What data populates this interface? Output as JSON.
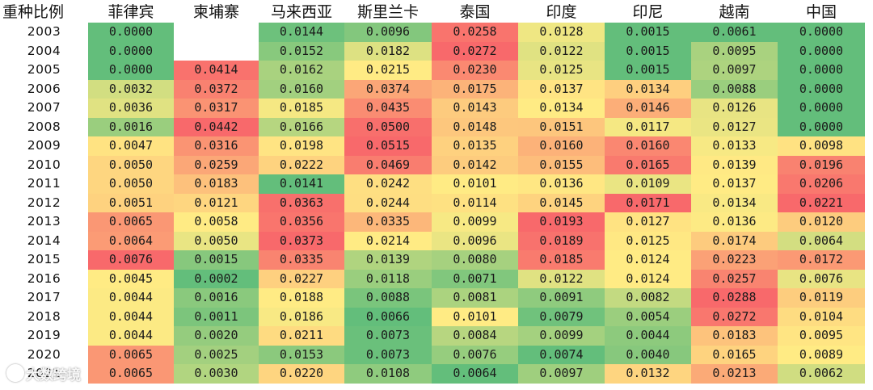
{
  "chart_data": {
    "type": "heatmap",
    "corner_label": "重种比例",
    "columns": [
      "菲律宾",
      "柬埔寨",
      "马来西亚",
      "斯里兰卡",
      "泰国",
      "印度",
      "印尼",
      "越南",
      "中国"
    ],
    "rows": [
      "2003",
      "2004",
      "2005",
      "2006",
      "2007",
      "2008",
      "2009",
      "2010",
      "2011",
      "2012",
      "2013",
      "2014",
      "2015",
      "2016",
      "2017",
      "2018",
      "2019",
      "2020",
      "2021"
    ],
    "values": [
      [
        "0.0000",
        null,
        "0.0144",
        "0.0096",
        "0.0258",
        "0.0128",
        "0.0015",
        "0.0061",
        "0.0000"
      ],
      [
        "0.0000",
        null,
        "0.0152",
        "0.0182",
        "0.0272",
        "0.0122",
        "0.0015",
        "0.0095",
        "0.0000"
      ],
      [
        "0.0000",
        "0.0414",
        "0.0162",
        "0.0215",
        "0.0230",
        "0.0125",
        "0.0015",
        "0.0097",
        "0.0000"
      ],
      [
        "0.0032",
        "0.0372",
        "0.0160",
        "0.0374",
        "0.0175",
        "0.0137",
        "0.0134",
        "0.0088",
        "0.0000"
      ],
      [
        "0.0036",
        "0.0317",
        "0.0185",
        "0.0435",
        "0.0143",
        "0.0134",
        "0.0146",
        "0.0126",
        "0.0000"
      ],
      [
        "0.0016",
        "0.0442",
        "0.0166",
        "0.0500",
        "0.0148",
        "0.0151",
        "0.0117",
        "0.0127",
        "0.0000"
      ],
      [
        "0.0047",
        "0.0316",
        "0.0198",
        "0.0515",
        "0.0135",
        "0.0160",
        "0.0160",
        "0.0133",
        "0.0098"
      ],
      [
        "0.0050",
        "0.0259",
        "0.0222",
        "0.0469",
        "0.0142",
        "0.0155",
        "0.0165",
        "0.0139",
        "0.0196"
      ],
      [
        "0.0050",
        "0.0183",
        "0.0141",
        "0.0242",
        "0.0101",
        "0.0136",
        "0.0109",
        "0.0137",
        "0.0206"
      ],
      [
        "0.0051",
        "0.0121",
        "0.0363",
        "0.0244",
        "0.0114",
        "0.0145",
        "0.0171",
        "0.0134",
        "0.0221"
      ],
      [
        "0.0065",
        "0.0058",
        "0.0356",
        "0.0335",
        "0.0099",
        "0.0193",
        "0.0127",
        "0.0136",
        "0.0120"
      ],
      [
        "0.0064",
        "0.0050",
        "0.0373",
        "0.0214",
        "0.0096",
        "0.0189",
        "0.0125",
        "0.0174",
        "0.0064"
      ],
      [
        "0.0076",
        "0.0015",
        "0.0335",
        "0.0139",
        "0.0080",
        "0.0185",
        "0.0124",
        "0.0223",
        "0.0172"
      ],
      [
        "0.0045",
        "0.0002",
        "0.0227",
        "0.0118",
        "0.0071",
        "0.0122",
        "0.0124",
        "0.0257",
        "0.0076"
      ],
      [
        "0.0044",
        "0.0016",
        "0.0188",
        "0.0088",
        "0.0081",
        "0.0091",
        "0.0082",
        "0.0288",
        "0.0119"
      ],
      [
        "0.0044",
        "0.0011",
        "0.0186",
        "0.0066",
        "0.0101",
        "0.0079",
        "0.0054",
        "0.0272",
        "0.0104"
      ],
      [
        "0.0044",
        "0.0020",
        "0.0211",
        "0.0073",
        "0.0084",
        "0.0099",
        "0.0044",
        "0.0183",
        "0.0095"
      ],
      [
        "0.0065",
        "0.0025",
        "0.0153",
        "0.0073",
        "0.0076",
        "0.0074",
        "0.0040",
        "0.0165",
        "0.0089"
      ],
      [
        "0.0065",
        "0.0030",
        "0.0220",
        "0.0108",
        "0.0064",
        "0.0097",
        "0.0132",
        "0.0213",
        "0.0062"
      ]
    ],
    "color_scale": {
      "scope": "per-column",
      "low": "#63be7b",
      "mid": "#ffeb84",
      "high": "#f8696b"
    }
  },
  "watermark": "大数跨境"
}
